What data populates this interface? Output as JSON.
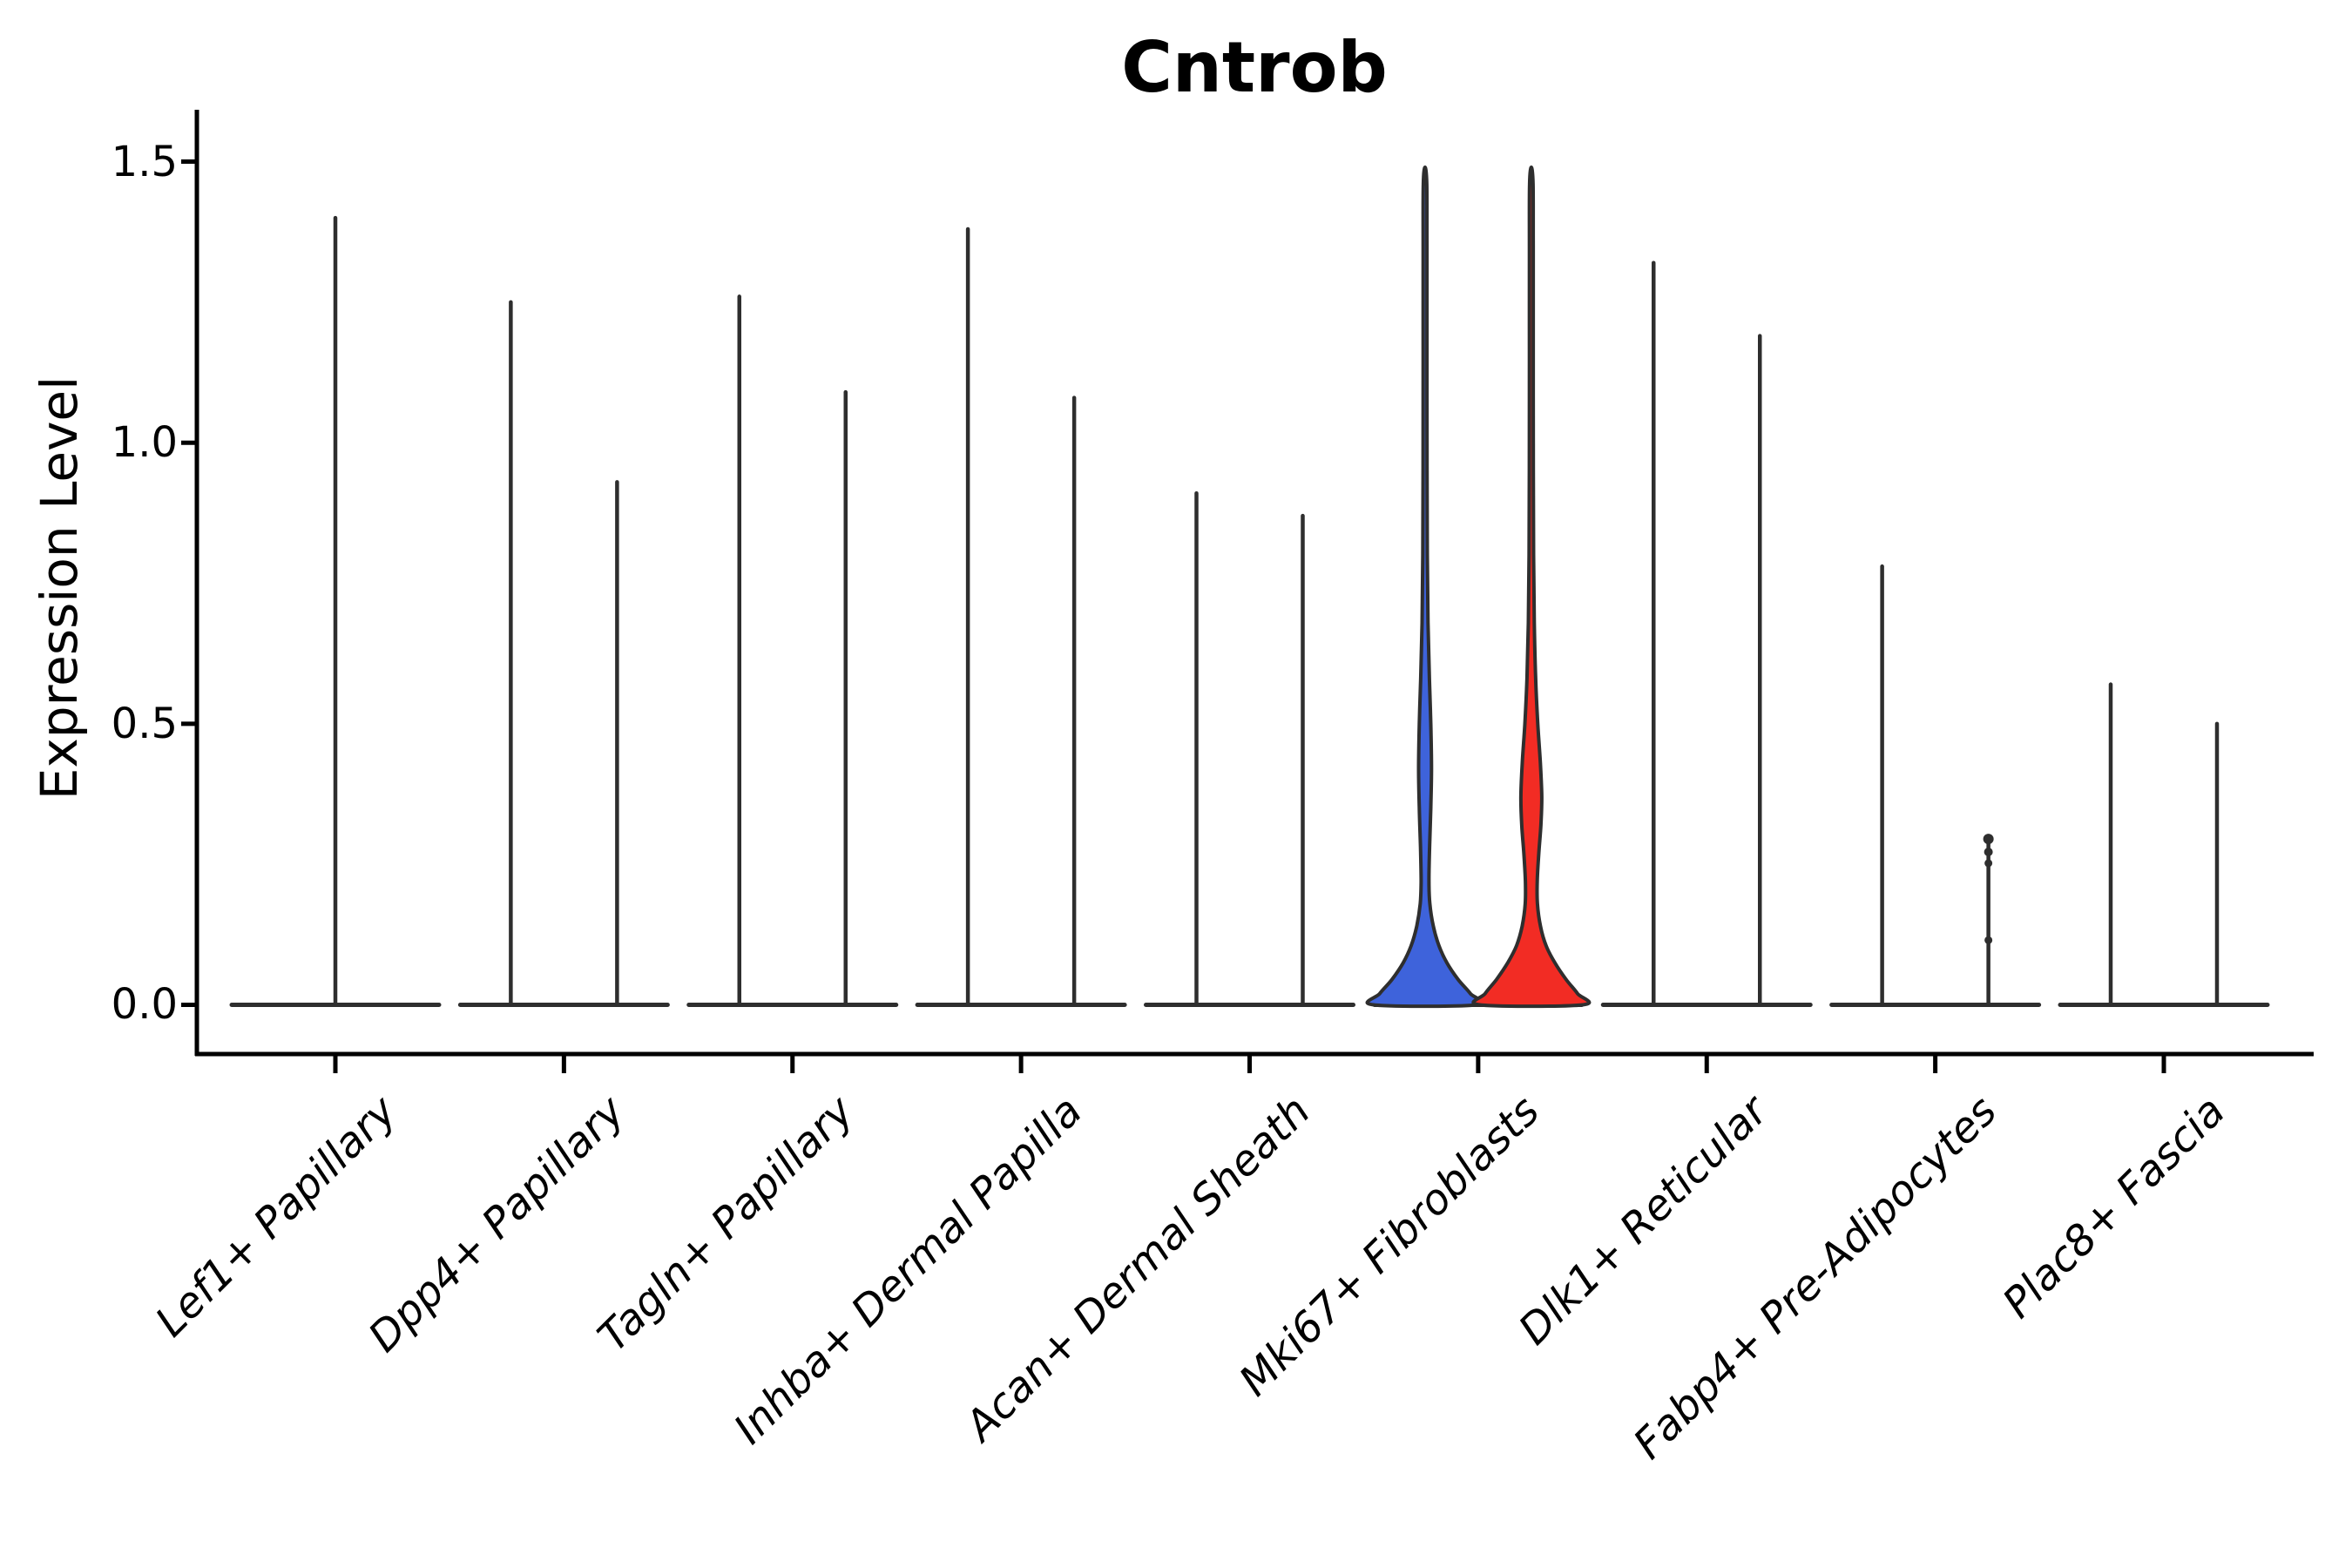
{
  "axes": {
    "y": {
      "label": "Expression Level",
      "tick_labels": [
        "1.5",
        "1.0",
        "0.5",
        "0.0"
      ]
    },
    "x": {
      "tick_labels": [
        "Lef1+ Papillary",
        "Dpp4+ Papillary",
        "Tagln+ Papillary",
        "Inhba+ Dermal Papilla",
        "Acan+ Dermal Sheath",
        "Mki67+ Fibroblasts",
        "Dlk1+ Reticular",
        "Fabp4+ Pre-Adipocytes",
        "Plac8+ Fascia"
      ]
    }
  },
  "chart_data": {
    "type": "violin",
    "title": "Cntrob",
    "xlabel": "",
    "ylabel": "Expression Level",
    "ylim": [
      0,
      1.55
    ],
    "yticks": [
      0,
      0.5,
      1.0,
      1.5
    ],
    "grid": false,
    "legend": false,
    "categories": [
      "Lef1+ Papillary",
      "Dpp4+ Papillary",
      "Tagln+ Papillary",
      "Inhba+ Dermal Papilla",
      "Acan+ Dermal Sheath",
      "Mki67+ Fibroblasts",
      "Dlk1+ Reticular",
      "Fabp4+ Pre-Adipocytes",
      "Plac8+ Fascia"
    ],
    "colors": {
      "violin1_fill": "#3E63DB",
      "violin2_fill": "#F22C24",
      "outline": "#2E2E2E",
      "axis": "#000000"
    },
    "groups": [
      {
        "category": "Lef1+ Papillary",
        "violins": [
          {
            "offset": 0,
            "max": 1.4
          }
        ]
      },
      {
        "category": "Dpp4+ Papillary",
        "violins": [
          {
            "offset": -61,
            "max": 1.25
          },
          {
            "offset": 61,
            "max": 0.93
          }
        ]
      },
      {
        "category": "Tagln+ Papillary",
        "violins": [
          {
            "offset": -61,
            "max": 1.26
          },
          {
            "offset": 61,
            "max": 1.09
          }
        ]
      },
      {
        "category": "Inhba+ Dermal Papilla",
        "violins": [
          {
            "offset": -61,
            "max": 1.38
          },
          {
            "offset": 61,
            "max": 1.08
          }
        ]
      },
      {
        "category": "Acan+ Dermal Sheath",
        "violins": [
          {
            "offset": -61,
            "max": 0.91
          },
          {
            "offset": 61,
            "max": 0.87
          }
        ]
      },
      {
        "category": "Mki67+ Fibroblasts",
        "violins": [
          {
            "offset": -61,
            "max": 1.49,
            "fill": "#3E63DB",
            "shape": [
              [
                0,
                59
              ],
              [
                0.02,
                52
              ],
              [
                0.045,
                38
              ],
              [
                0.075,
                25
              ],
              [
                0.105,
                16
              ],
              [
                0.14,
                9.5
              ],
              [
                0.18,
                5.5
              ],
              [
                0.22,
                4.5
              ],
              [
                0.28,
                5.2
              ],
              [
                0.35,
                6.6
              ],
              [
                0.42,
                7.4
              ],
              [
                0.5,
                6.6
              ],
              [
                0.58,
                5
              ],
              [
                0.68,
                3.4
              ],
              [
                0.8,
                2.6
              ],
              [
                0.95,
                2.3
              ],
              [
                1.15,
                2.2
              ],
              [
                1.35,
                2.2
              ],
              [
                1.46,
                2
              ],
              [
                1.49,
                0
              ]
            ]
          },
          {
            "offset": 61,
            "max": 1.49,
            "fill": "#F22C24",
            "shape": [
              [
                0,
                59
              ],
              [
                0.02,
                53
              ],
              [
                0.045,
                40
              ],
              [
                0.075,
                27
              ],
              [
                0.105,
                17
              ],
              [
                0.14,
                10.5
              ],
              [
                0.18,
                7
              ],
              [
                0.22,
                6.8
              ],
              [
                0.27,
                8.6
              ],
              [
                0.32,
                11
              ],
              [
                0.37,
                12
              ],
              [
                0.43,
                10.4
              ],
              [
                0.5,
                7.4
              ],
              [
                0.58,
                5
              ],
              [
                0.68,
                3.4
              ],
              [
                0.8,
                2.6
              ],
              [
                0.95,
                2.3
              ],
              [
                1.15,
                2.2
              ],
              [
                1.35,
                2.2
              ],
              [
                1.46,
                2
              ],
              [
                1.49,
                0
              ]
            ]
          }
        ]
      },
      {
        "category": "Dlk1+ Reticular",
        "violins": [
          {
            "offset": -61,
            "max": 1.32
          },
          {
            "offset": 61,
            "max": 1.19
          }
        ]
      },
      {
        "category": "Fabp4+ Pre-Adipocytes",
        "violins": [
          {
            "offset": -61,
            "max": 0.78
          },
          {
            "offset": 61,
            "max": 0.3,
            "dots": [
              0.295,
              0.272,
              0.252,
              0.115
            ]
          }
        ]
      },
      {
        "category": "Plac8+ Fascia",
        "violins": [
          {
            "offset": -61,
            "max": 0.57
          },
          {
            "offset": 61,
            "max": 0.5
          }
        ]
      }
    ]
  }
}
